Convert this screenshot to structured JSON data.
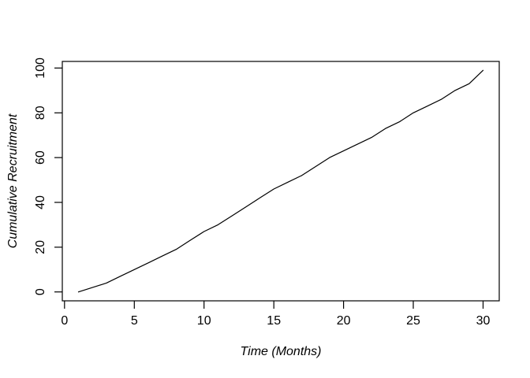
{
  "figure": {
    "background": "#ffffff"
  },
  "chart_data": {
    "type": "line",
    "title": "",
    "xlabel": "Time (Months)",
    "ylabel": "Cumulative Recruitment",
    "x": [
      1,
      2,
      3,
      4,
      5,
      6,
      7,
      8,
      9,
      10,
      11,
      12,
      13,
      14,
      15,
      16,
      17,
      18,
      19,
      20,
      21,
      22,
      23,
      24,
      25,
      26,
      27,
      28,
      29,
      30
    ],
    "values": [
      0,
      2,
      4,
      7,
      10,
      13,
      16,
      19,
      23,
      27,
      30,
      34,
      38,
      42,
      46,
      49,
      52,
      56,
      60,
      63,
      66,
      69,
      73,
      76,
      80,
      83,
      86,
      90,
      93,
      99
    ],
    "x_ticks": [
      0,
      5,
      10,
      15,
      20,
      25,
      30
    ],
    "y_ticks": [
      0,
      20,
      40,
      60,
      80,
      100
    ],
    "x_axis_range": [
      0,
      30
    ],
    "y_axis_range": [
      0,
      100
    ],
    "line_color": "#000000",
    "grid": false,
    "legend": "none"
  }
}
